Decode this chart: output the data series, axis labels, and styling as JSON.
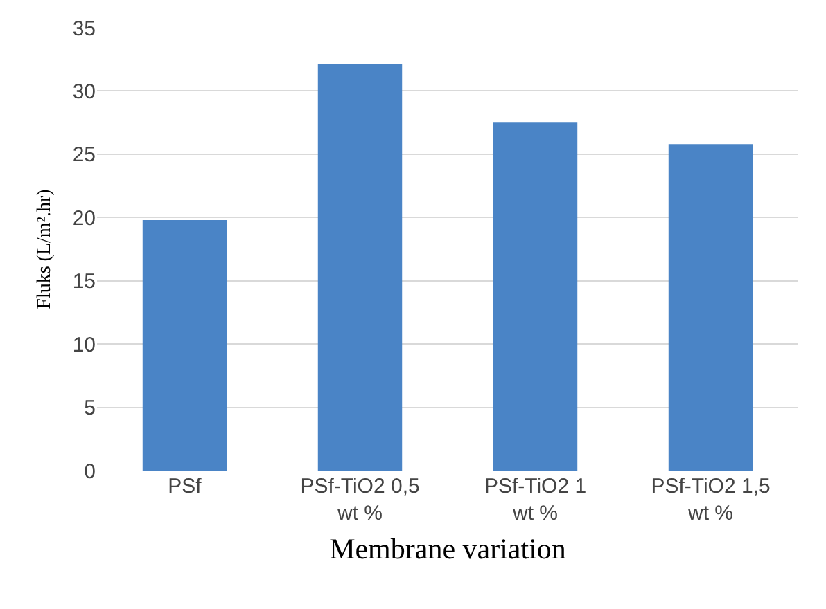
{
  "chart_data": {
    "type": "bar",
    "xlabel": "Membrane variation",
    "ylabel": "Fluks (L/m².hr)",
    "categories": [
      "PSf",
      "PSf-TiO2 0,5 wt %",
      "PSf-TiO2 1 wt %",
      "PSf-TiO2 1,5 wt %"
    ],
    "values": [
      19.8,
      32.1,
      27.5,
      25.8
    ],
    "color": "#4a84c6",
    "ylim": [
      0,
      35
    ],
    "yticks": [
      0,
      5,
      10,
      15,
      20,
      25,
      30,
      35
    ],
    "grid": "y",
    "legend": false
  }
}
